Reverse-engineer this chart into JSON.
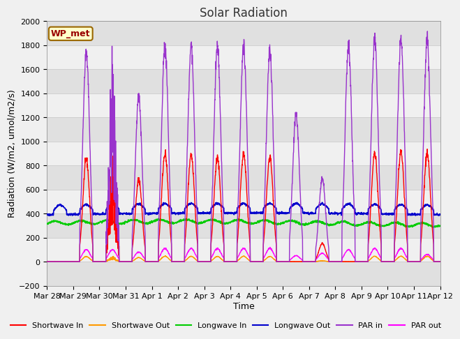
{
  "title": "Solar Radiation",
  "xlabel": "Time",
  "ylabel": "Radiation (W/m2, umol/m2/s)",
  "ylim": [
    -200,
    2000
  ],
  "fig_bg_color": "#f0f0f0",
  "plot_bg_color": "#ffffff",
  "band_color_dark": "#e0e0e0",
  "band_color_light": "#f0f0f0",
  "annotation_text": "WP_met",
  "annotation_bg": "#ffffcc",
  "annotation_border": "#996600",
  "tick_labels": [
    "Mar 28",
    "Mar 29",
    "Mar 30",
    "Mar 31",
    "Apr 1",
    "Apr 2",
    "Apr 3",
    "Apr 4",
    "Apr 5",
    "Apr 6",
    "Apr 7",
    "Apr 8",
    "Apr 9",
    "Apr 10",
    "Apr 11",
    "Apr 12"
  ],
  "num_days": 15,
  "series": {
    "shortwave_in": {
      "color": "#ff0000",
      "label": "Shortwave In",
      "lw": 1.0
    },
    "shortwave_out": {
      "color": "#ff9900",
      "label": "Shortwave Out",
      "lw": 1.0
    },
    "longwave_in": {
      "color": "#00cc00",
      "label": "Longwave In",
      "lw": 1.2
    },
    "longwave_out": {
      "color": "#0000cc",
      "label": "Longwave Out",
      "lw": 1.2
    },
    "par_in": {
      "color": "#9933cc",
      "label": "PAR in",
      "lw": 1.0
    },
    "par_out": {
      "color": "#ff00ff",
      "label": "PAR out",
      "lw": 1.0
    }
  },
  "yticks": [
    -200,
    0,
    200,
    400,
    600,
    800,
    1000,
    1200,
    1400,
    1600,
    1800,
    2000
  ],
  "grid_color": "#cccccc",
  "title_fontsize": 12,
  "label_fontsize": 9,
  "tick_fontsize": 8
}
